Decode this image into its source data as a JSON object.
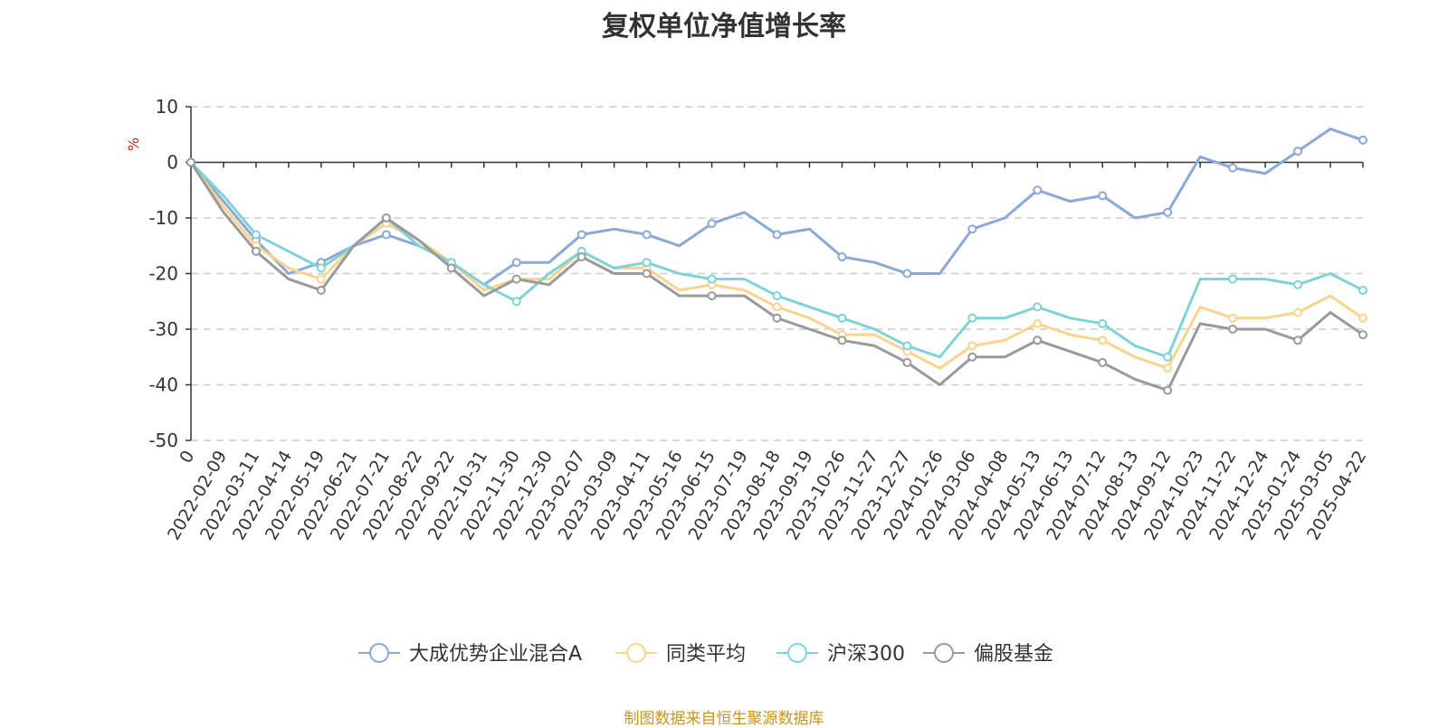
{
  "chart_data": {
    "type": "line",
    "title": "复权单位净值增长率",
    "ylabel": "%",
    "xlabel": "",
    "ylim": [
      -50,
      10
    ],
    "yticks": [
      10,
      0,
      -10,
      -20,
      -30,
      -40,
      -50
    ],
    "categories": [
      "0",
      "2022-02-09",
      "2022-03-11",
      "2022-04-14",
      "2022-05-19",
      "2022-06-21",
      "2022-07-21",
      "2022-08-22",
      "2022-09-22",
      "2022-10-31",
      "2022-11-30",
      "2022-12-30",
      "2023-02-07",
      "2023-03-09",
      "2023-04-11",
      "2023-05-16",
      "2023-06-15",
      "2023-07-19",
      "2023-08-18",
      "2023-09-19",
      "2023-10-26",
      "2023-11-27",
      "2023-12-27",
      "2024-01-26",
      "2024-03-06",
      "2024-04-08",
      "2024-05-13",
      "2024-06-13",
      "2024-07-12",
      "2024-08-13",
      "2024-09-12",
      "2024-10-23",
      "2024-11-22",
      "2024-12-24",
      "2025-01-24",
      "2025-03-05",
      "2025-04-22"
    ],
    "series": [
      {
        "name": "大成优势企业混合A",
        "color": "#8aa8d8",
        "values": [
          0,
          -7,
          -14,
          -20,
          -18,
          -15,
          -13,
          -15,
          -18,
          -22,
          -18,
          -18,
          -13,
          -12,
          -13,
          -15,
          -11,
          -9,
          -13,
          -12,
          -17,
          -18,
          -20,
          -20,
          -12,
          -10,
          -5,
          -7,
          -6,
          -10,
          -9,
          1,
          -1,
          -2,
          2,
          6,
          4
        ]
      },
      {
        "name": "同类平均",
        "color": "#fad48c",
        "values": [
          0,
          -8,
          -15,
          -19,
          -21,
          -15,
          -11,
          -14,
          -18,
          -23,
          -21,
          -21,
          -16,
          -19,
          -19,
          -23,
          -22,
          -23,
          -26,
          -28,
          -31,
          -31,
          -34,
          -37,
          -33,
          -32,
          -29,
          -31,
          -32,
          -35,
          -37,
          -26,
          -28,
          -28,
          -27,
          -24,
          -28
        ]
      },
      {
        "name": "沪深300",
        "color": "#7fd3d6",
        "values": [
          0,
          -6,
          -13,
          -16,
          -19,
          -15,
          -10,
          -15,
          -18,
          -22,
          -25,
          -20,
          -16,
          -19,
          -18,
          -20,
          -21,
          -21,
          -24,
          -26,
          -28,
          -30,
          -33,
          -35,
          -28,
          -28,
          -26,
          -28,
          -29,
          -33,
          -35,
          -21,
          -21,
          -21,
          -22,
          -20,
          -23
        ]
      },
      {
        "name": "偏股基金",
        "color": "#9a9a9a",
        "values": [
          0,
          -9,
          -16,
          -21,
          -23,
          -15,
          -10,
          -14,
          -19,
          -24,
          -21,
          -22,
          -17,
          -20,
          -20,
          -24,
          -24,
          -24,
          -28,
          -30,
          -32,
          -33,
          -36,
          -40,
          -35,
          -35,
          -32,
          -34,
          -36,
          -39,
          -41,
          -29,
          -30,
          -30,
          -32,
          -27,
          -31
        ]
      }
    ],
    "legend_position": "bottom",
    "grid": true
  },
  "footer": {
    "source": "制图数据来自恒生聚源数据库"
  }
}
